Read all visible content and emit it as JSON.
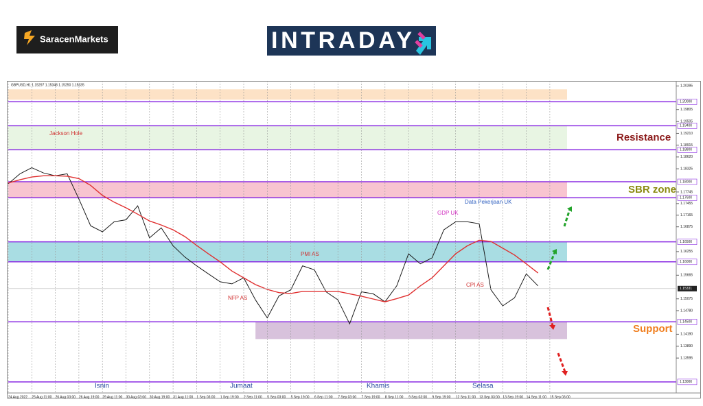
{
  "header": {
    "brand": "SaracenMarkets",
    "logo": "INTRADAY"
  },
  "chart_data": {
    "type": "line",
    "symbol_line": "GBPUSD,H1  1.15297 1.15348 1.15250 1.15335",
    "categories": [
      "24 Aug 2022",
      null,
      "25 Aug 11:00",
      null,
      "26 Aug 03:00",
      null,
      "26 Aug 19:00",
      null,
      "29 Aug 11:00",
      null,
      "30 Aug 03:00",
      null,
      "30 Aug 19:00",
      null,
      "31 Aug 11:00",
      null,
      "1 Sep 03:00",
      null,
      "1 Sep 19:00",
      null,
      "2 Sep 11:00",
      null,
      "5 Sep 03:00",
      null,
      "5 Sep 19:00",
      null,
      "6 Sep 11:00",
      null,
      "7 Sep 03:00",
      null,
      "7 Sep 19:00",
      null,
      "8 Sep 11:00",
      null,
      "9 Sep 03:00",
      null,
      "9 Sep 19:00",
      null,
      "12 Sep 11:00",
      null,
      "13 Sep 03:00",
      null,
      "13 Sep 19:00",
      null,
      "14 Sep 11:00",
      null,
      "15 Sep 03:00"
    ],
    "series": [
      {
        "color": "#1a1a1a",
        "values": [
          1.1795,
          1.182,
          1.1835,
          1.1822,
          1.1815,
          1.182,
          1.1757,
          1.169,
          1.1675,
          1.17,
          1.1705,
          1.174,
          1.166,
          1.1685,
          1.164,
          1.1612,
          1.159,
          1.157,
          1.155,
          1.1545,
          1.156,
          1.1505,
          1.146,
          1.1515,
          1.153,
          1.159,
          1.158,
          1.1525,
          1.1505,
          1.1445,
          1.1525,
          1.152,
          1.15,
          1.154,
          1.162,
          1.1595,
          1.161,
          1.168,
          1.17,
          1.17,
          1.1695,
          1.153,
          1.149,
          1.151,
          1.157,
          1.154,
          null
        ]
      },
      {
        "color": "#e03030",
        "values": [
          1.1797,
          1.1805,
          1.1812,
          1.1815,
          1.1815,
          1.1814,
          1.1808,
          1.1791,
          1.1766,
          1.1749,
          1.1735,
          1.1719,
          1.1702,
          1.1692,
          1.168,
          1.1663,
          1.1641,
          1.162,
          1.16,
          1.1577,
          1.156,
          1.1543,
          1.1531,
          1.1523,
          1.1521,
          1.1526,
          1.1526,
          1.1526,
          1.1526,
          1.152,
          1.1514,
          1.1507,
          1.15,
          1.1508,
          1.1517,
          1.154,
          1.156,
          1.159,
          1.162,
          1.164,
          1.1654,
          1.1651,
          1.1634,
          1.1617,
          1.1595,
          1.1572,
          null
        ]
      }
    ],
    "ylim": [
      1.1274,
      1.2052
    ],
    "yticks": [
      {
        "value": 1.20395,
        "label": "1.20395"
      },
      {
        "value": 1.19805,
        "label": "1.19805"
      },
      {
        "value": 1.19505,
        "label": "1.19505"
      },
      {
        "value": 1.1921,
        "label": "1.19210"
      },
      {
        "value": 1.18915,
        "label": "1.18915"
      },
      {
        "value": 1.1862,
        "label": "1.18620"
      },
      {
        "value": 1.18325,
        "label": "1.18325"
      },
      {
        "value": 1.17745,
        "label": "1.17745"
      },
      {
        "value": 1.17455,
        "label": "1.17455"
      },
      {
        "value": 1.17165,
        "label": "1.17165"
      },
      {
        "value": 1.16875,
        "label": "1.16875"
      },
      {
        "value": 1.16255,
        "label": "1.16255"
      },
      {
        "value": 1.15665,
        "label": "1.15665"
      },
      {
        "value": 1.15075,
        "label": "1.15075"
      },
      {
        "value": 1.1478,
        "label": "1.14780"
      },
      {
        "value": 1.1419,
        "label": "1.14190"
      },
      {
        "value": 1.1389,
        "label": "1.13890"
      },
      {
        "value": 1.13595,
        "label": "1.13595"
      }
    ],
    "levels": [
      {
        "value": 1.2,
        "label": "1.20000"
      },
      {
        "value": 1.194,
        "label": "1.19400"
      },
      {
        "value": 1.188,
        "label": "1.18800"
      },
      {
        "value": 1.18,
        "label": "1.18000"
      },
      {
        "value": 1.176,
        "label": "1.17600"
      },
      {
        "value": 1.165,
        "label": "1.16500"
      },
      {
        "value": 1.16,
        "label": "1.16000"
      },
      {
        "value": 1.145,
        "label": "1.14500"
      },
      {
        "value": 1.13,
        "label": "1.13000"
      }
    ],
    "last_price": {
      "value": 1.15331,
      "label": "1.15331"
    },
    "zones": [
      {
        "from": 1.2031,
        "to": 1.2005,
        "color": "#fde2c6"
      },
      {
        "from": 1.194,
        "to": 1.188,
        "color": "#e8f5e3"
      },
      {
        "from": 1.18,
        "to": 1.176,
        "color": "#f8c4d0"
      },
      {
        "from": 1.165,
        "to": 1.16,
        "color": "#a9dde3"
      },
      {
        "from": 1.145,
        "to": 1.1407,
        "color": "#d8c2dc",
        "from_category": 21
      }
    ],
    "annotations": [
      "Jackson Hole",
      "NFP AS",
      "PMI AS",
      "GDP UK",
      "Data Pekerjaan UK",
      "CPI AS"
    ],
    "day_labels": [
      "Isnin",
      "Jumaat",
      "Khamis",
      "Selasa"
    ],
    "zone_labels": [
      "Resistance",
      "SBR zone",
      "Support"
    ]
  }
}
